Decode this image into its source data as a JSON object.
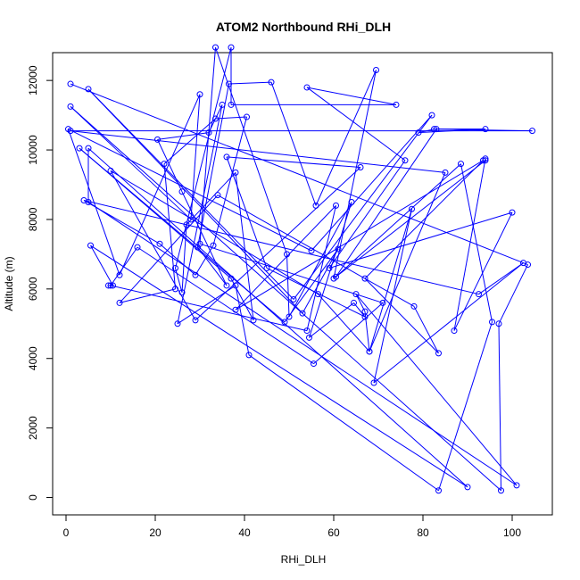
{
  "chart_data": {
    "type": "line",
    "title": "ATOM2 Northbound RHi_DLH",
    "xlabel": "RHi_DLH",
    "ylabel": "Altitude (m)",
    "xlim": [
      -3,
      109
    ],
    "ylim": [
      -500,
      12800
    ],
    "xticks": [
      0,
      20,
      40,
      60,
      80,
      100
    ],
    "yticks": [
      0,
      2000,
      4000,
      6000,
      8000,
      10000,
      12000
    ],
    "grid": false,
    "legend": "none",
    "colors": {
      "series": "#0000ff",
      "axis": "#000000",
      "background": "#ffffff"
    },
    "series": [
      {
        "markers": "open-circle",
        "points": [
          [
            1,
            11900
          ],
          [
            103.5,
            6700
          ],
          [
            97,
            5000
          ],
          [
            97.5,
            200
          ],
          [
            1,
            11250
          ],
          [
            28,
            8000
          ],
          [
            30,
            11600
          ],
          [
            12,
            6400
          ],
          [
            0.5,
            10600
          ],
          [
            55,
            7100
          ],
          [
            82,
            11000
          ],
          [
            51,
            5700
          ],
          [
            5,
            11750
          ],
          [
            53,
            5300
          ],
          [
            61,
            7150
          ],
          [
            49,
            5050
          ],
          [
            3,
            10050
          ],
          [
            37,
            6300
          ],
          [
            42,
            5100
          ],
          [
            38,
            9350
          ],
          [
            27,
            7850
          ],
          [
            26,
            5900
          ],
          [
            24.5,
            6600
          ],
          [
            37,
            12950
          ],
          [
            37,
            11300
          ],
          [
            74,
            11300
          ],
          [
            54,
            11800
          ],
          [
            76,
            9700
          ],
          [
            59,
            6600
          ],
          [
            100,
            8200
          ],
          [
            87,
            4800
          ],
          [
            94,
            9750
          ],
          [
            94,
            9700
          ],
          [
            60,
            6300
          ],
          [
            69.5,
            12300
          ],
          [
            56,
            8400
          ],
          [
            46,
            11950
          ],
          [
            36.5,
            11900
          ],
          [
            29.5,
            7200
          ],
          [
            36,
            6100
          ],
          [
            26,
            8800
          ],
          [
            20.5,
            10300
          ],
          [
            32,
            10500
          ],
          [
            35,
            11300
          ],
          [
            25,
            5000
          ],
          [
            38,
            6100
          ],
          [
            41,
            4100
          ],
          [
            83.5,
            200
          ],
          [
            95.5,
            5050
          ],
          [
            88.5,
            9600
          ],
          [
            60.5,
            6350
          ],
          [
            83,
            10600
          ],
          [
            94,
            10600
          ],
          [
            79,
            10500
          ],
          [
            82.5,
            10600
          ],
          [
            104.5,
            10550
          ],
          [
            1,
            10550
          ],
          [
            85,
            9350
          ],
          [
            68,
            4200
          ],
          [
            77.5,
            8300
          ],
          [
            69,
            3300
          ],
          [
            102.5,
            6750
          ],
          [
            92.5,
            5850
          ],
          [
            4,
            8550
          ],
          [
            21,
            7300
          ],
          [
            29,
            6400
          ],
          [
            33,
            7250
          ],
          [
            40.5,
            10950
          ],
          [
            33.5,
            10900
          ],
          [
            22,
            9600
          ],
          [
            24.5,
            6000
          ],
          [
            12,
            5600
          ],
          [
            34,
            8700
          ],
          [
            78,
            5500
          ],
          [
            83.5,
            4150
          ],
          [
            67,
            6300
          ],
          [
            93.5,
            9700
          ],
          [
            38,
            5400
          ],
          [
            60.5,
            8400
          ],
          [
            54,
            4800
          ],
          [
            10,
            6100
          ],
          [
            16,
            7200
          ],
          [
            55.5,
            3850
          ],
          [
            71,
            5600
          ],
          [
            30,
            7300
          ],
          [
            33.5,
            12950
          ],
          [
            49.5,
            7000
          ],
          [
            50,
            5200
          ],
          [
            64,
            8500
          ],
          [
            54.5,
            4600
          ],
          [
            64.5,
            5600
          ],
          [
            67,
            5200
          ],
          [
            45,
            6600
          ],
          [
            36,
            9800
          ],
          [
            66,
            9500
          ],
          [
            29,
            5100
          ],
          [
            10,
            9400
          ],
          [
            56.5,
            5850
          ],
          [
            68,
            4200
          ],
          [
            67,
            5350
          ],
          [
            65,
            5850
          ],
          [
            101,
            350
          ],
          [
            5,
            8500
          ],
          [
            5,
            10050
          ],
          [
            90,
            300
          ],
          [
            5.5,
            7250
          ],
          [
            10.5,
            6100
          ],
          [
            9.5,
            6100
          ]
        ]
      }
    ]
  }
}
